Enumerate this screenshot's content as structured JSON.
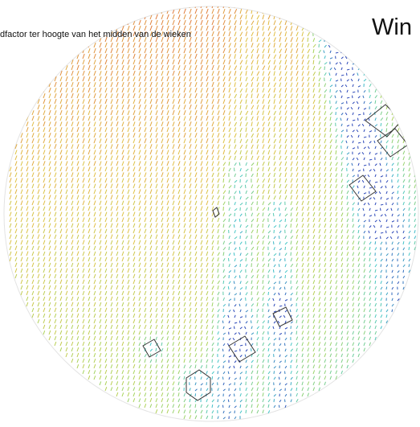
{
  "figure": {
    "title": "Win",
    "caption": "dfactor ter hoogte van het midden van de wieken"
  },
  "legend_colors": {
    "high": "#e07a3a",
    "upper_mid": "#e0c040",
    "mid": "#a6d45a",
    "lower_mid": "#43c6c8",
    "low": "#2a46b8",
    "building_outline": "#333333"
  }
}
